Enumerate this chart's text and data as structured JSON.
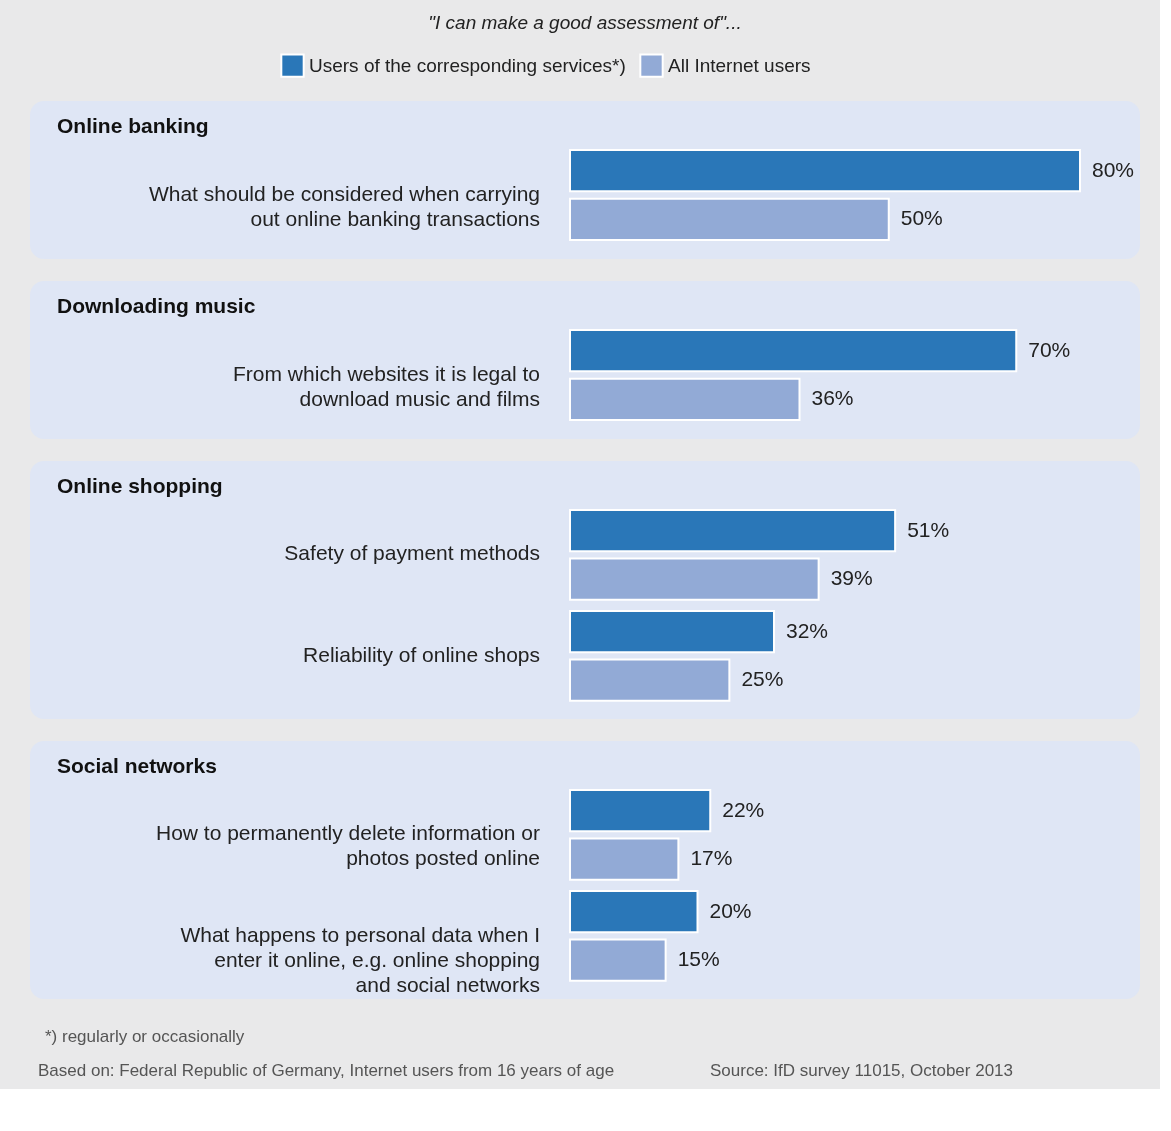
{
  "chart_data": [
    {
      "type": "bar",
      "orientation": "horizontal",
      "subtitle": "\"I can make a good assessment of\"...",
      "legend": "top",
      "title": "Online banking",
      "categories": [
        "What should be considered when carrying out online banking transactions"
      ],
      "series": [
        {
          "name": "Users of the corresponding services*)",
          "color": "#2a77b8",
          "values": [
            80
          ],
          "value_labels": [
            "80%"
          ]
        },
        {
          "name": "All Internet users",
          "color": "#92aad6",
          "values": [
            50
          ],
          "value_labels": [
            "50%"
          ]
        }
      ]
    },
    {
      "type": "bar",
      "orientation": "horizontal",
      "title": "Downloading music",
      "categories": [
        "From which websites it is legal to download music and films"
      ],
      "series": [
        {
          "name": "Users of the corresponding services*)",
          "color": "#2a77b8",
          "values": [
            70
          ],
          "value_labels": [
            "70%"
          ]
        },
        {
          "name": "All Internet users",
          "color": "#92aad6",
          "values": [
            36
          ],
          "value_labels": [
            "36%"
          ]
        }
      ]
    },
    {
      "type": "bar",
      "orientation": "horizontal",
      "title": "Online shopping",
      "categories": [
        "Safety of payment methods",
        "Reliability of online shops"
      ],
      "series": [
        {
          "name": "Users of the corresponding services*)",
          "color": "#2a77b8",
          "values": [
            51,
            32
          ],
          "value_labels": [
            "51%",
            "32%"
          ]
        },
        {
          "name": "All Internet users",
          "color": "#92aad6",
          "values": [
            39,
            25
          ],
          "value_labels": [
            "39%",
            "25%"
          ]
        }
      ]
    },
    {
      "type": "bar",
      "orientation": "horizontal",
      "title": "Social networks",
      "categories": [
        "How to permanently delete information or photos posted online",
        "What happens to personal data when I enter it online, e.g. online shopping and social networks"
      ],
      "series": [
        {
          "name": "Users of the corresponding services*)",
          "color": "#2a77b8",
          "values": [
            22,
            20
          ],
          "value_labels": [
            "22%",
            "20%"
          ]
        },
        {
          "name": "All Internet users",
          "color": "#92aad6",
          "values": [
            17,
            15
          ],
          "value_labels": [
            "17%",
            "15%"
          ]
        }
      ],
      "annotations": [
        "*) regularly or occasionally",
        "Based on: Federal Republic of Germany, Internet users from 16 years of age",
        "Source: IfD survey 11015, October 2013"
      ]
    }
  ]
}
